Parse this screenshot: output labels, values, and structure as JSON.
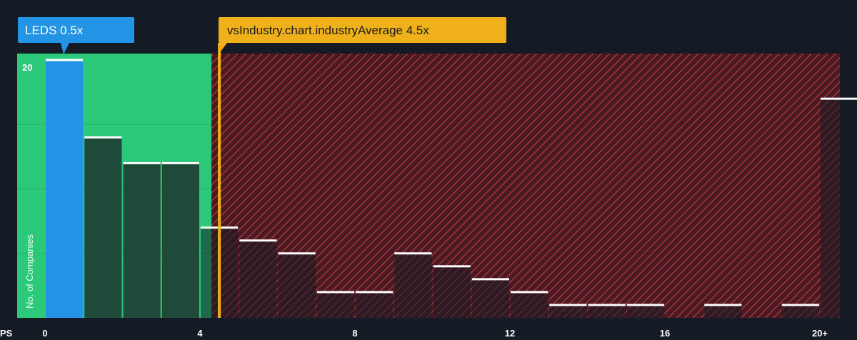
{
  "chart_data": {
    "type": "bar",
    "x_axis_label": "PS",
    "y_axis_label": "No. of Companies",
    "x_ticks": [
      {
        "value": 0,
        "label": "0"
      },
      {
        "value": 4,
        "label": "4"
      },
      {
        "value": 8,
        "label": "8"
      },
      {
        "value": 12,
        "label": "12"
      },
      {
        "value": 16,
        "label": "16"
      },
      {
        "value": 20,
        "label": "20+"
      }
    ],
    "y_ticks": [
      {
        "value": 20,
        "label": "20"
      }
    ],
    "ylim": [
      0,
      20.5
    ],
    "xlim": [
      -0.7,
      20.8
    ],
    "bins": [
      {
        "start": 0,
        "end": 1,
        "count": 20
      },
      {
        "start": 1,
        "end": 2,
        "count": 14
      },
      {
        "start": 2,
        "end": 3,
        "count": 12
      },
      {
        "start": 3,
        "end": 4,
        "count": 12
      },
      {
        "start": 4,
        "end": 5,
        "count": 7
      },
      {
        "start": 5,
        "end": 6,
        "count": 6
      },
      {
        "start": 6,
        "end": 7,
        "count": 5
      },
      {
        "start": 7,
        "end": 8,
        "count": 2
      },
      {
        "start": 8,
        "end": 9,
        "count": 2
      },
      {
        "start": 9,
        "end": 10,
        "count": 5
      },
      {
        "start": 10,
        "end": 11,
        "count": 4
      },
      {
        "start": 11,
        "end": 12,
        "count": 3
      },
      {
        "start": 12,
        "end": 13,
        "count": 2
      },
      {
        "start": 13,
        "end": 14,
        "count": 1
      },
      {
        "start": 14,
        "end": 15,
        "count": 1
      },
      {
        "start": 15,
        "end": 16,
        "count": 1
      },
      {
        "start": 16,
        "end": 17,
        "count": 0
      },
      {
        "start": 17,
        "end": 18,
        "count": 1
      },
      {
        "start": 18,
        "end": 19,
        "count": 0
      },
      {
        "start": 19,
        "end": 20,
        "count": 1
      },
      {
        "start": 20,
        "end": 21,
        "count": 17
      }
    ],
    "company": {
      "label": "LEDS 0.5x",
      "value": 0.5,
      "color": "#2394e6"
    },
    "industry": {
      "label": "vsIndustry.chart.industryAverage 4.5x",
      "value": 4.5,
      "color": "#f0b019"
    },
    "fair_zone_end": 4.3,
    "colors": {
      "background": "#151b24",
      "fair_zone": "#2dc97a",
      "bar_fair": "#1e4a3a",
      "overvalued_zone": "#5a1f28",
      "hatch": "#c63b45",
      "bar_top": "#ffffff"
    }
  }
}
